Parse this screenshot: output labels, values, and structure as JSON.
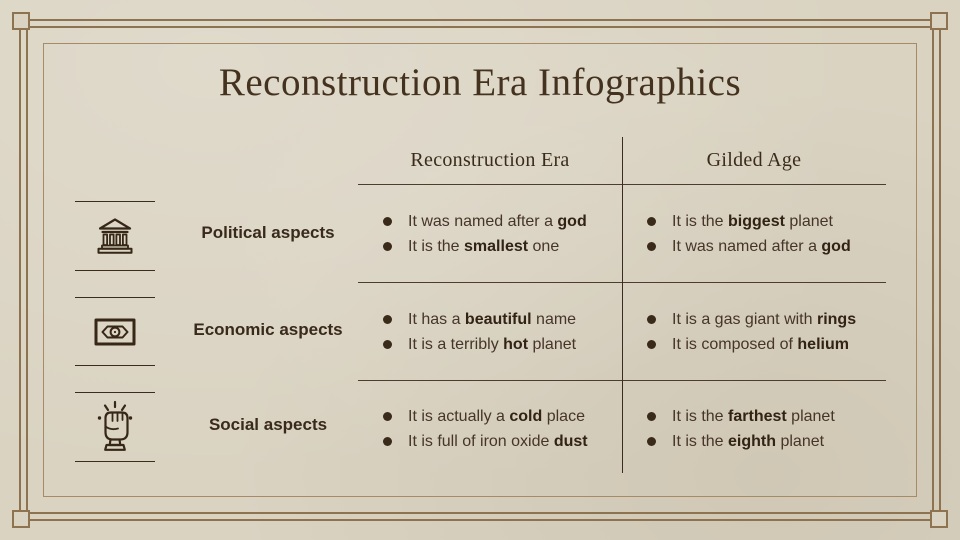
{
  "slide": {
    "title": "Reconstruction Era Infographics"
  },
  "colors": {
    "background": "#dad3c2",
    "frame_brown": "#8e7351",
    "inner_frame_brown": "#a78b66",
    "ink_dark_brown": "#3a2a1a",
    "body_text": "#463528"
  },
  "table": {
    "columns": [
      "Reconstruction Era",
      "Gilded Age"
    ],
    "rows": [
      {
        "label": "Political aspects",
        "icon": "bank-icon",
        "col1": [
          "It was named after a **god**",
          "It is the **smallest** one"
        ],
        "col2": [
          "It is the **biggest** planet",
          "It was named after a **god**"
        ]
      },
      {
        "label": "Economic aspects",
        "icon": "banknote-icon",
        "col1": [
          "It has a **beautiful** name",
          "It is a terribly **hot** planet"
        ],
        "col2": [
          "It is a gas giant with **rings**",
          "It is composed of **helium**"
        ]
      },
      {
        "label": "Social aspects",
        "icon": "raised-fist-icon",
        "col1": [
          "It is actually a **cold** place",
          "It is full of iron oxide **dust**"
        ],
        "col2": [
          "It is the **farthest** planet",
          "It is the **eighth** planet"
        ]
      }
    ]
  }
}
